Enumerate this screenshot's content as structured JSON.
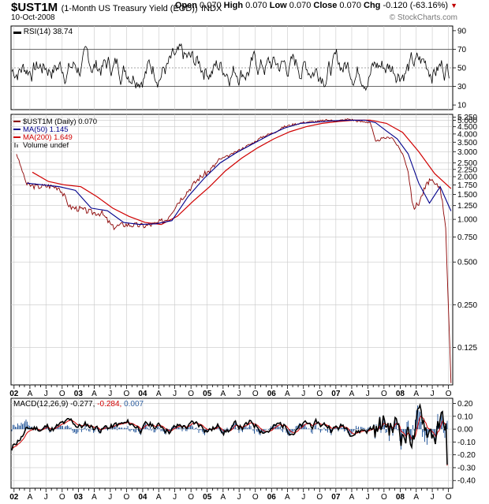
{
  "header": {
    "symbol": "$UST1M",
    "name": "(1-Month US Treasury Yield (EOD))",
    "exchange": "INDX",
    "date": "10-Oct-2008",
    "open_label": "Open",
    "open": "0.070",
    "high_label": "High",
    "high": "0.070",
    "low_label": "Low",
    "low": "0.070",
    "close_label": "Close",
    "close": "0.070",
    "chg_label": "Chg",
    "chg": "-0.120 (-63.16%)",
    "copyright": "© StockCharts.com"
  },
  "colors": {
    "price": "#8b0000",
    "ma50": "#00008b",
    "ma200": "#d00000",
    "rsi": "#000000",
    "rsi_fill_hi": "#5a8a5a",
    "rsi_fill_lo": "#7a5a6a",
    "macd": "#000000",
    "signal": "#d00000",
    "histogram": "#3060a0",
    "grid": "#c8c8c8"
  },
  "chart_data": [
    {
      "panel": "rsi",
      "type": "line",
      "label": "RSI(14) 38.74",
      "y_ticks": [
        10,
        30,
        50,
        70,
        90
      ],
      "ylim": [
        5,
        95
      ],
      "reference_lines": [
        30,
        50,
        70
      ],
      "series": [
        {
          "name": "RSI(14)",
          "last": 38.74
        }
      ]
    },
    {
      "panel": "price",
      "type": "line",
      "scale": "log",
      "x_ticks": [
        "02",
        "A",
        "J",
        "O",
        "03",
        "A",
        "J",
        "O",
        "04",
        "A",
        "J",
        "O",
        "05",
        "A",
        "J",
        "O",
        "06",
        "A",
        "J",
        "O",
        "07",
        "A",
        "J",
        "O",
        "08",
        "A",
        "J",
        "O"
      ],
      "y_ticks": [
        0.125,
        0.25,
        0.5,
        0.75,
        1.0,
        1.25,
        1.5,
        1.75,
        2.0,
        2.25,
        2.5,
        3.0,
        3.5,
        4.0,
        4.5,
        5.0,
        5.25
      ],
      "y_tick_labels": [
        "0.125",
        "0.250",
        "0.500",
        "0.750",
        "1.000",
        "1.250",
        "1.500",
        "1.750",
        "2.000",
        "2.250",
        "2.500",
        "3.000",
        "3.500",
        "4.000",
        "4.500",
        "5.000",
        "5.250"
      ],
      "ylim": [
        0.068,
        5.5
      ],
      "legend": [
        {
          "text": "$UST1M (Daily) 0.070",
          "marker": "line"
        },
        {
          "text": "MA(50) 1.145",
          "marker": "line"
        },
        {
          "text": "MA(200) 1.649",
          "marker": "line"
        },
        {
          "text": "Volume undef",
          "marker": "bars"
        }
      ],
      "series": [
        {
          "name": "$UST1M (Daily)",
          "x": [
            "2002-01",
            "2002-03",
            "2002-05",
            "2002-07",
            "2002-09",
            "2002-11",
            "2003-01",
            "2003-03",
            "2003-05",
            "2003-07",
            "2003-09",
            "2003-11",
            "2004-01",
            "2004-03",
            "2004-05",
            "2004-07",
            "2004-09",
            "2004-11",
            "2005-01",
            "2005-03",
            "2005-05",
            "2005-07",
            "2005-09",
            "2005-11",
            "2006-01",
            "2006-03",
            "2006-05",
            "2006-07",
            "2006-09",
            "2006-11",
            "2007-01",
            "2007-03",
            "2007-05",
            "2007-07",
            "2007-08",
            "2007-09",
            "2007-11",
            "2008-01",
            "2008-02",
            "2008-03",
            "2008-04",
            "2008-05",
            "2008-06",
            "2008-07",
            "2008-08",
            "2008-09",
            "2008-10"
          ],
          "y": [
            2.9,
            1.75,
            1.7,
            1.72,
            1.68,
            1.22,
            1.18,
            1.12,
            1.1,
            0.88,
            0.92,
            0.91,
            0.9,
            0.93,
            1.0,
            1.3,
            1.6,
            1.95,
            2.2,
            2.65,
            2.85,
            3.15,
            3.45,
            3.85,
            4.1,
            4.5,
            4.7,
            4.85,
            4.9,
            5.0,
            4.95,
            5.1,
            4.9,
            4.85,
            3.5,
            3.7,
            3.8,
            2.9,
            2.2,
            1.2,
            1.3,
            1.6,
            1.9,
            1.75,
            1.7,
            0.9,
            0.07
          ]
        },
        {
          "name": "MA(50)",
          "x": [
            "2002-03",
            "2002-06",
            "2002-09",
            "2002-12",
            "2003-03",
            "2003-06",
            "2003-09",
            "2003-12",
            "2004-03",
            "2004-06",
            "2004-09",
            "2004-12",
            "2005-03",
            "2005-06",
            "2005-09",
            "2005-12",
            "2006-03",
            "2006-06",
            "2006-09",
            "2006-12",
            "2007-03",
            "2007-06",
            "2007-08",
            "2007-10",
            "2007-12",
            "2008-02",
            "2008-04",
            "2008-06",
            "2008-08",
            "2008-10"
          ],
          "y": [
            1.8,
            1.75,
            1.7,
            1.6,
            1.2,
            1.15,
            0.95,
            0.92,
            0.93,
            0.98,
            1.45,
            1.95,
            2.5,
            2.95,
            3.4,
            3.9,
            4.4,
            4.75,
            4.85,
            4.95,
            5.0,
            5.0,
            4.8,
            4.2,
            3.7,
            2.9,
            1.8,
            1.3,
            1.7,
            1.145
          ]
        },
        {
          "name": "MA(200)",
          "x": [
            "2002-04",
            "2002-07",
            "2002-10",
            "2003-01",
            "2003-04",
            "2003-07",
            "2003-10",
            "2004-01",
            "2004-04",
            "2004-07",
            "2004-10",
            "2005-01",
            "2005-04",
            "2005-07",
            "2005-10",
            "2006-01",
            "2006-04",
            "2006-07",
            "2006-10",
            "2007-01",
            "2007-04",
            "2007-07",
            "2007-10",
            "2008-01",
            "2008-04",
            "2008-07",
            "2008-10"
          ],
          "y": [
            2.15,
            1.85,
            1.75,
            1.7,
            1.45,
            1.2,
            1.05,
            0.95,
            0.92,
            1.05,
            1.35,
            1.7,
            2.2,
            2.7,
            3.2,
            3.7,
            4.15,
            4.5,
            4.75,
            4.9,
            5.0,
            5.0,
            4.75,
            4.1,
            3.0,
            2.1,
            1.649
          ]
        }
      ]
    },
    {
      "panel": "macd",
      "type": "line",
      "label_macd": "MACD(12,26,9) -0.277,",
      "label_signal": "-0.284,",
      "label_hist": "0.007",
      "y_ticks": [
        -0.4,
        -0.3,
        -0.2,
        -0.1,
        0.0,
        0.1,
        0.2
      ],
      "y_tick_labels": [
        "-0.40",
        "-0.30",
        "-0.20",
        "-0.10",
        "0.00",
        "0.10",
        "0.20"
      ],
      "ylim": [
        -0.46,
        0.24
      ],
      "series": [
        {
          "name": "MACD(12,26,9)",
          "last": -0.277
        },
        {
          "name": "Signal",
          "last": -0.284
        },
        {
          "name": "Histogram",
          "last": 0.007
        }
      ]
    }
  ]
}
